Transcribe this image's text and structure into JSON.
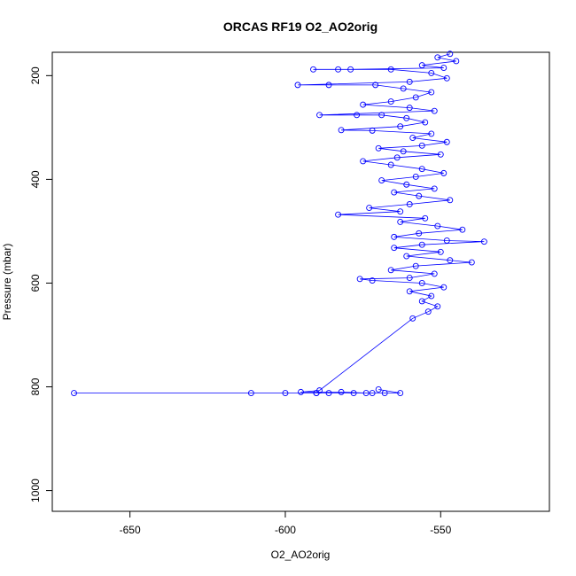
{
  "chart_data": {
    "type": "scatter",
    "title": "ORCAS RF19 O2_AO2orig",
    "xlabel": "O2_AO2orig",
    "ylabel": "Pressure (mbar)",
    "xlim": [
      -675,
      -515
    ],
    "ylim": [
      1040,
      155
    ],
    "y_reversed": true,
    "x_ticks": [
      -650,
      -600,
      -550
    ],
    "y_ticks": [
      200,
      400,
      600,
      800,
      1000
    ],
    "marker": "open-circle",
    "connect_points": true,
    "color": "#0000ff",
    "grid": false,
    "series": [
      {
        "points": [
          [
            -547,
            158
          ],
          [
            -551,
            165
          ],
          [
            -545,
            172
          ],
          [
            -556,
            180
          ],
          [
            -549,
            185
          ],
          [
            -579,
            188
          ],
          [
            -591,
            188
          ],
          [
            -583,
            188
          ],
          [
            -566,
            188
          ],
          [
            -553,
            195
          ],
          [
            -548,
            205
          ],
          [
            -560,
            212
          ],
          [
            -596,
            218
          ],
          [
            -586,
            218
          ],
          [
            -571,
            218
          ],
          [
            -562,
            225
          ],
          [
            -553,
            232
          ],
          [
            -558,
            242
          ],
          [
            -566,
            250
          ],
          [
            -575,
            256
          ],
          [
            -560,
            262
          ],
          [
            -552,
            268
          ],
          [
            -589,
            276
          ],
          [
            -577,
            276
          ],
          [
            -569,
            276
          ],
          [
            -561,
            282
          ],
          [
            -555,
            290
          ],
          [
            -563,
            298
          ],
          [
            -582,
            305
          ],
          [
            -572,
            306
          ],
          [
            -553,
            312
          ],
          [
            -559,
            320
          ],
          [
            -548,
            328
          ],
          [
            -556,
            335
          ],
          [
            -570,
            340
          ],
          [
            -562,
            346
          ],
          [
            -550,
            352
          ],
          [
            -564,
            358
          ],
          [
            -575,
            365
          ],
          [
            -566,
            372
          ],
          [
            -556,
            380
          ],
          [
            -549,
            388
          ],
          [
            -558,
            395
          ],
          [
            -569,
            402
          ],
          [
            -561,
            410
          ],
          [
            -552,
            418
          ],
          [
            -565,
            425
          ],
          [
            -557,
            432
          ],
          [
            -547,
            440
          ],
          [
            -560,
            448
          ],
          [
            -573,
            455
          ],
          [
            -563,
            462
          ],
          [
            -583,
            468
          ],
          [
            -555,
            475
          ],
          [
            -563,
            482
          ],
          [
            -551,
            490
          ],
          [
            -543,
            497
          ],
          [
            -557,
            504
          ],
          [
            -565,
            511
          ],
          [
            -548,
            518
          ],
          [
            -536,
            520
          ],
          [
            -556,
            526
          ],
          [
            -565,
            532
          ],
          [
            -550,
            540
          ],
          [
            -561,
            548
          ],
          [
            -547,
            556
          ],
          [
            -540,
            560
          ],
          [
            -558,
            567
          ],
          [
            -566,
            575
          ],
          [
            -552,
            582
          ],
          [
            -560,
            590
          ],
          [
            -576,
            592
          ],
          [
            -572,
            595
          ],
          [
            -556,
            600
          ],
          [
            -549,
            608
          ],
          [
            -560,
            616
          ],
          [
            -553,
            625
          ],
          [
            -556,
            635
          ],
          [
            -551,
            645
          ],
          [
            -554,
            655
          ],
          [
            -559,
            668
          ],
          [
            -589,
            807
          ],
          [
            -595,
            810
          ],
          [
            -582,
            810
          ],
          [
            -574,
            812
          ],
          [
            -568,
            812
          ],
          [
            -578,
            812
          ],
          [
            -590,
            812
          ],
          [
            -600,
            812
          ],
          [
            -611,
            812
          ],
          [
            -668,
            812
          ],
          [
            -590,
            812
          ],
          [
            -586,
            812
          ],
          [
            -572,
            812
          ],
          [
            -563,
            812
          ],
          [
            -570,
            805
          ]
        ]
      }
    ]
  }
}
